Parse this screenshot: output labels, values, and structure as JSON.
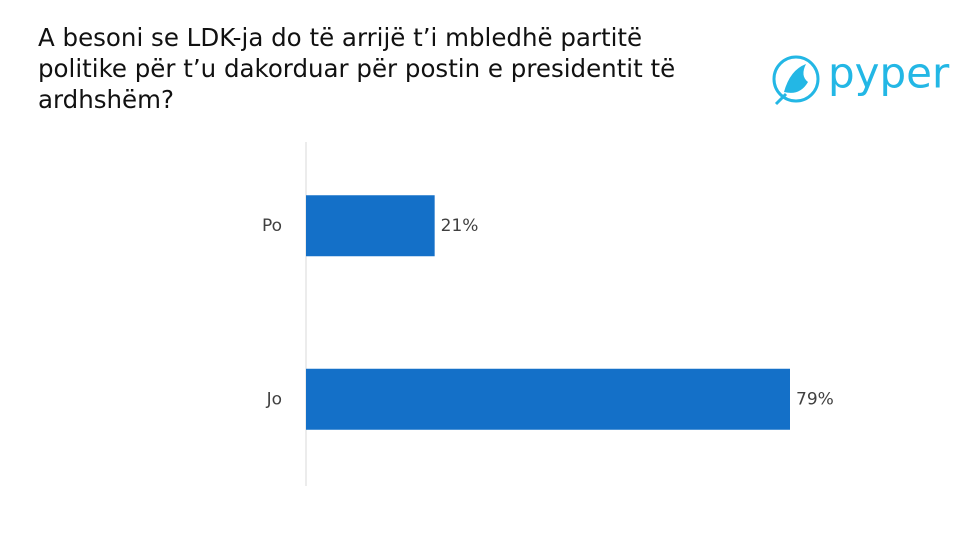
{
  "chart_data": {
    "type": "hbar",
    "title": "A besoni se LDK-ja do të arrijë t’i mbledhë partitë politike për t’u dakorduar për postin e presidentit të ardhshëm?",
    "categories": [
      "Po",
      "Jo"
    ],
    "values": [
      21,
      79
    ],
    "value_labels": [
      "21%",
      "79%"
    ],
    "color": "#1470c8"
  },
  "logo": "pyper"
}
